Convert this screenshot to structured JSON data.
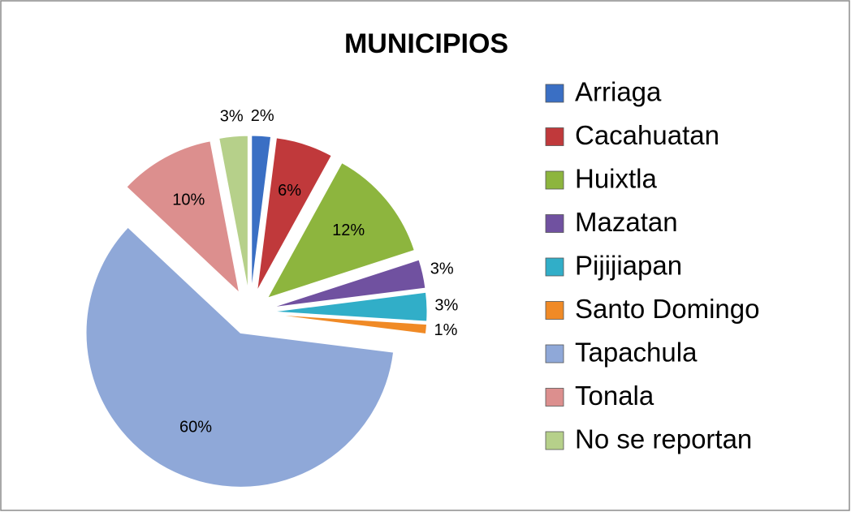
{
  "chart_data": {
    "type": "pie",
    "title": "MUNICIPIOS",
    "categories": [
      "Arriaga",
      "Cacahuatan",
      "Huixtla",
      "Mazatan",
      "Pijijiapan",
      "Santo Domingo",
      "Tapachula",
      "Tonala",
      "No se reportan"
    ],
    "values": [
      2,
      6,
      12,
      3,
      3,
      1,
      60,
      10,
      3
    ],
    "value_labels": [
      "2%",
      "6%",
      "12%",
      "3%",
      "3%",
      "1%",
      "60%",
      "10%",
      "3%"
    ],
    "colors": [
      "#3a6fc4",
      "#c0393b",
      "#8db53e",
      "#7051a0",
      "#31aec8",
      "#f08a26",
      "#8fa8d8",
      "#dc8f8e",
      "#b6d08a"
    ],
    "legend": "right"
  }
}
